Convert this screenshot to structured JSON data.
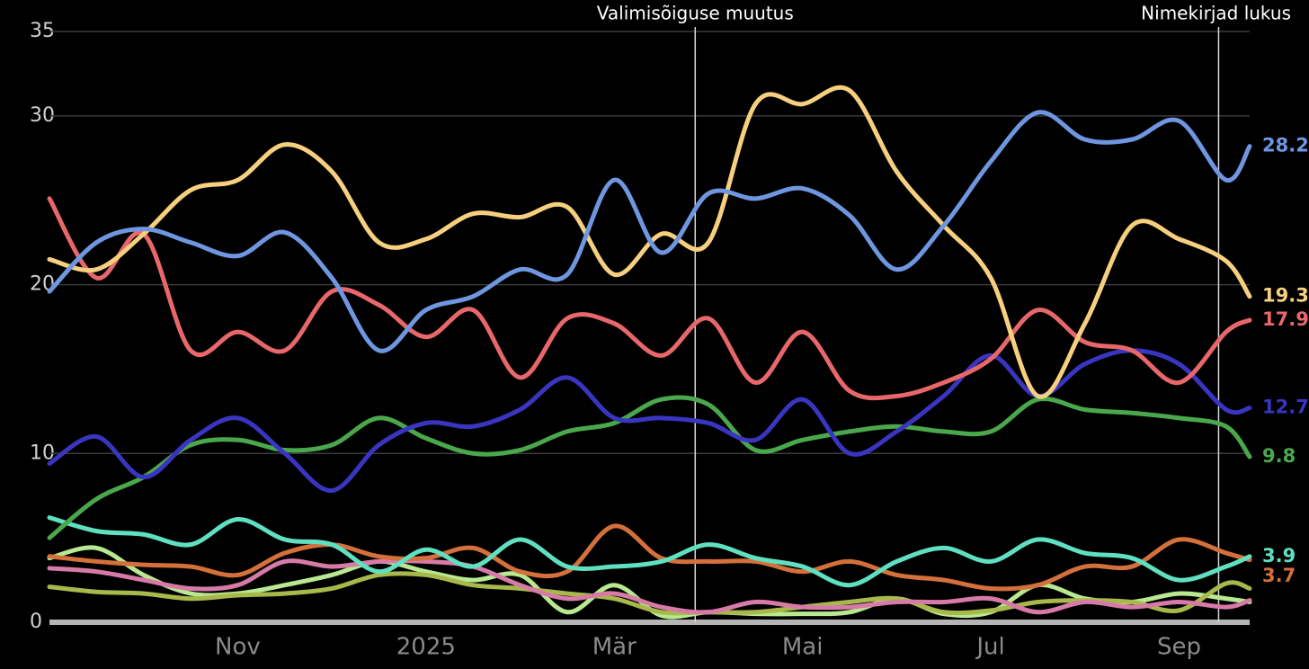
{
  "chart_data": {
    "type": "line",
    "x": [
      0,
      0.5,
      1,
      1.5,
      2,
      2.5,
      3,
      3.5,
      4,
      4.5,
      5,
      5.5,
      6,
      6.5,
      7,
      7.5,
      8,
      8.5,
      9,
      9.5,
      10,
      10.5,
      11,
      11.5,
      12,
      12.5,
      12.75
    ],
    "xlim": [
      0,
      12.75
    ],
    "xticks": [
      {
        "value": 2,
        "label": "Nov"
      },
      {
        "value": 4,
        "label": "2025"
      },
      {
        "value": 6,
        "label": "Mär"
      },
      {
        "value": 8,
        "label": "Mai"
      },
      {
        "value": 10,
        "label": "Jul"
      },
      {
        "value": 12,
        "label": "Sep"
      }
    ],
    "ylim": [
      0,
      35
    ],
    "yticks": [
      0,
      10,
      20,
      30,
      35
    ],
    "grid": true,
    "annotations": [
      {
        "text": "Valimisõiguse muutus",
        "x": 6.86
      },
      {
        "text": "Nimekirjad lukus",
        "x": 12.42
      }
    ],
    "series": [
      {
        "color": "#6f96e0",
        "label_last": true,
        "values": [
          19.6,
          22.5,
          23.3,
          22.5,
          21.7,
          23.1,
          20.4,
          16.1,
          18.5,
          19.3,
          20.9,
          20.6,
          26.2,
          21.9,
          25.4,
          25.1,
          25.7,
          24.1,
          20.9,
          23.5,
          27.3,
          30.2,
          28.6,
          28.6,
          29.7,
          26.2,
          28.2
        ]
      },
      {
        "color": "#f6d07e",
        "label_last": true,
        "values": [
          21.5,
          20.9,
          23.0,
          25.6,
          26.2,
          28.3,
          26.7,
          22.5,
          22.7,
          24.2,
          24.0,
          24.6,
          20.6,
          23.0,
          22.5,
          30.7,
          30.7,
          31.5,
          26.7,
          23.5,
          20.4,
          13.4,
          17.7,
          23.5,
          22.7,
          21.4,
          19.3
        ]
      },
      {
        "color": "#e8676b",
        "label_last": true,
        "values": [
          25.1,
          20.4,
          23.0,
          16.1,
          17.2,
          16.1,
          19.6,
          18.8,
          16.9,
          18.5,
          14.5,
          18.0,
          17.7,
          15.8,
          18.0,
          14.2,
          17.2,
          13.7,
          13.4,
          14.2,
          15.6,
          18.5,
          16.6,
          16.1,
          14.2,
          17.2,
          17.9
        ]
      },
      {
        "color": "#3a35c0",
        "label_last": true,
        "values": [
          9.4,
          11.0,
          8.6,
          10.8,
          12.1,
          10.0,
          7.8,
          10.5,
          11.8,
          11.6,
          12.6,
          14.5,
          12.1,
          12.1,
          11.8,
          10.8,
          13.2,
          10.0,
          11.3,
          13.4,
          15.8,
          13.4,
          15.3,
          16.1,
          15.3,
          12.6,
          12.7
        ]
      },
      {
        "color": "#4aa84c",
        "label_last": true,
        "values": [
          5.0,
          7.3,
          8.6,
          10.5,
          10.8,
          10.2,
          10.5,
          12.1,
          10.9,
          10.0,
          10.2,
          11.3,
          11.8,
          13.2,
          12.9,
          10.2,
          10.8,
          11.3,
          11.6,
          11.3,
          11.3,
          13.2,
          12.6,
          12.4,
          12.1,
          11.6,
          9.8
        ]
      },
      {
        "color": "#5fe0c0",
        "label_last": true,
        "values": [
          6.2,
          5.4,
          5.2,
          4.6,
          6.1,
          4.9,
          4.6,
          3.0,
          4.3,
          3.3,
          4.9,
          3.3,
          3.3,
          3.6,
          4.6,
          3.8,
          3.3,
          2.2,
          3.6,
          4.4,
          3.6,
          4.9,
          4.1,
          3.8,
          2.5,
          3.3,
          3.9
        ]
      },
      {
        "color": "#d4703a",
        "label_last": true,
        "values": [
          3.9,
          3.6,
          3.4,
          3.3,
          2.8,
          4.1,
          4.6,
          3.9,
          3.8,
          4.4,
          3.0,
          3.0,
          5.7,
          3.8,
          3.6,
          3.6,
          3.0,
          3.6,
          2.8,
          2.5,
          2.0,
          2.2,
          3.3,
          3.3,
          4.9,
          4.1,
          3.7
        ]
      },
      {
        "color": "#d77aa8",
        "label_last": false,
        "values": [
          3.2,
          3.0,
          2.5,
          2.0,
          2.2,
          3.6,
          3.3,
          3.6,
          3.6,
          3.3,
          2.2,
          1.4,
          1.7,
          0.9,
          0.6,
          1.2,
          0.9,
          0.9,
          1.2,
          1.2,
          1.4,
          0.6,
          1.2,
          0.9,
          1.2,
          0.9,
          1.3
        ]
      },
      {
        "color": "#a8b84a",
        "label_last": false,
        "values": [
          2.1,
          1.8,
          1.7,
          1.4,
          1.6,
          1.7,
          2.0,
          2.8,
          2.8,
          2.2,
          2.0,
          1.7,
          1.4,
          0.6,
          0.6,
          0.6,
          0.9,
          1.2,
          1.4,
          0.6,
          0.7,
          1.2,
          1.3,
          1.2,
          0.7,
          2.3,
          2.0
        ]
      },
      {
        "color": "#b8e890",
        "label_last": false,
        "values": [
          3.8,
          4.4,
          2.8,
          1.7,
          1.7,
          2.2,
          2.8,
          3.6,
          3.0,
          2.5,
          2.8,
          0.6,
          2.2,
          0.4,
          0.6,
          0.5,
          0.5,
          0.6,
          1.4,
          0.5,
          0.6,
          2.2,
          1.4,
          1.2,
          1.7,
          1.4,
          1.2
        ]
      }
    ]
  }
}
